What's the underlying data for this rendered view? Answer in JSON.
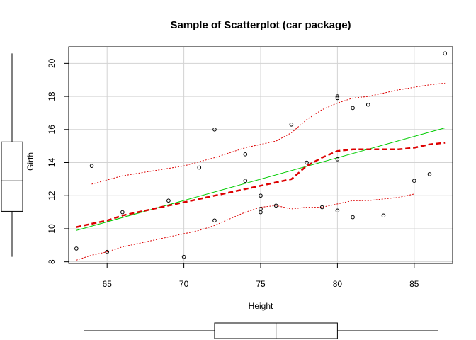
{
  "chart_data": {
    "type": "scatter",
    "title": "Sample of Scatterplot (car package)",
    "xlabel": "Height",
    "ylabel": "Girth",
    "xlim": [
      62.5,
      87.5
    ],
    "ylim": [
      7.9,
      21.0
    ],
    "xticks": [
      65,
      70,
      75,
      80,
      85
    ],
    "yticks": [
      8,
      10,
      12,
      14,
      16,
      18,
      20
    ],
    "grid": true,
    "points": [
      {
        "x": 63,
        "y": 8.8
      },
      {
        "x": 64,
        "y": 13.8
      },
      {
        "x": 65,
        "y": 8.6
      },
      {
        "x": 66,
        "y": 11.0
      },
      {
        "x": 69,
        "y": 11.7
      },
      {
        "x": 70,
        "y": 8.3
      },
      {
        "x": 71,
        "y": 13.7
      },
      {
        "x": 72,
        "y": 16.0
      },
      {
        "x": 72,
        "y": 10.5
      },
      {
        "x": 74,
        "y": 14.5
      },
      {
        "x": 74,
        "y": 12.9
      },
      {
        "x": 75,
        "y": 12.0
      },
      {
        "x": 75,
        "y": 11.2
      },
      {
        "x": 75,
        "y": 11.0
      },
      {
        "x": 76,
        "y": 11.4
      },
      {
        "x": 77,
        "y": 16.3
      },
      {
        "x": 78,
        "y": 14.0
      },
      {
        "x": 79,
        "y": 11.3
      },
      {
        "x": 80,
        "y": 18.0
      },
      {
        "x": 80,
        "y": 17.9
      },
      {
        "x": 80,
        "y": 14.2
      },
      {
        "x": 80,
        "y": 11.1
      },
      {
        "x": 81,
        "y": 17.3
      },
      {
        "x": 81,
        "y": 10.7
      },
      {
        "x": 82,
        "y": 17.5
      },
      {
        "x": 83,
        "y": 10.8
      },
      {
        "x": 85,
        "y": 12.9
      },
      {
        "x": 86,
        "y": 13.3
      },
      {
        "x": 87,
        "y": 20.6
      }
    ],
    "regression_line": {
      "color": "#00cc00",
      "x": [
        63,
        87
      ],
      "y": [
        9.9,
        16.1
      ]
    },
    "smoother": {
      "color": "#dd0000",
      "x": [
        63,
        64,
        65,
        66,
        67,
        68,
        69,
        70,
        71,
        72,
        73,
        74,
        75,
        76,
        77,
        78,
        79,
        80,
        81,
        82,
        83,
        84,
        85,
        86,
        87
      ],
      "y": [
        10.1,
        10.3,
        10.5,
        10.8,
        11.0,
        11.2,
        11.4,
        11.6,
        11.8,
        12.0,
        12.2,
        12.4,
        12.6,
        12.8,
        13.0,
        13.8,
        14.3,
        14.7,
        14.8,
        14.8,
        14.8,
        14.8,
        14.9,
        15.1,
        15.2
      ]
    },
    "upper_band": {
      "color": "#dd0000",
      "x": [
        64,
        66,
        68,
        70,
        72,
        74,
        75,
        76,
        77,
        78,
        79,
        80,
        81,
        82,
        84,
        86,
        87
      ],
      "y": [
        12.7,
        13.2,
        13.5,
        13.8,
        14.3,
        14.9,
        15.1,
        15.3,
        15.8,
        16.6,
        17.2,
        17.6,
        17.9,
        18.0,
        18.4,
        18.7,
        18.8
      ]
    },
    "lower_band": {
      "color": "#dd0000",
      "x": [
        63,
        64,
        65,
        66,
        67,
        68,
        69,
        70,
        71,
        72,
        73,
        74,
        75,
        76,
        77,
        78,
        79,
        80,
        81,
        82,
        83,
        84,
        85
      ],
      "y": [
        8.1,
        8.4,
        8.6,
        8.9,
        9.1,
        9.3,
        9.5,
        9.7,
        9.9,
        10.2,
        10.6,
        11.0,
        11.3,
        11.4,
        11.2,
        11.3,
        11.3,
        11.5,
        11.7,
        11.7,
        11.8,
        11.9,
        12.1
      ]
    },
    "x_boxplot": {
      "whisker_low": 63,
      "q1": 72,
      "median": 76,
      "q3": 80,
      "whisker_high": 87
    },
    "y_boxplot": {
      "whisker_low": 8.3,
      "q1": 11.05,
      "median": 12.9,
      "q3": 15.25,
      "whisker_high": 20.6
    }
  }
}
